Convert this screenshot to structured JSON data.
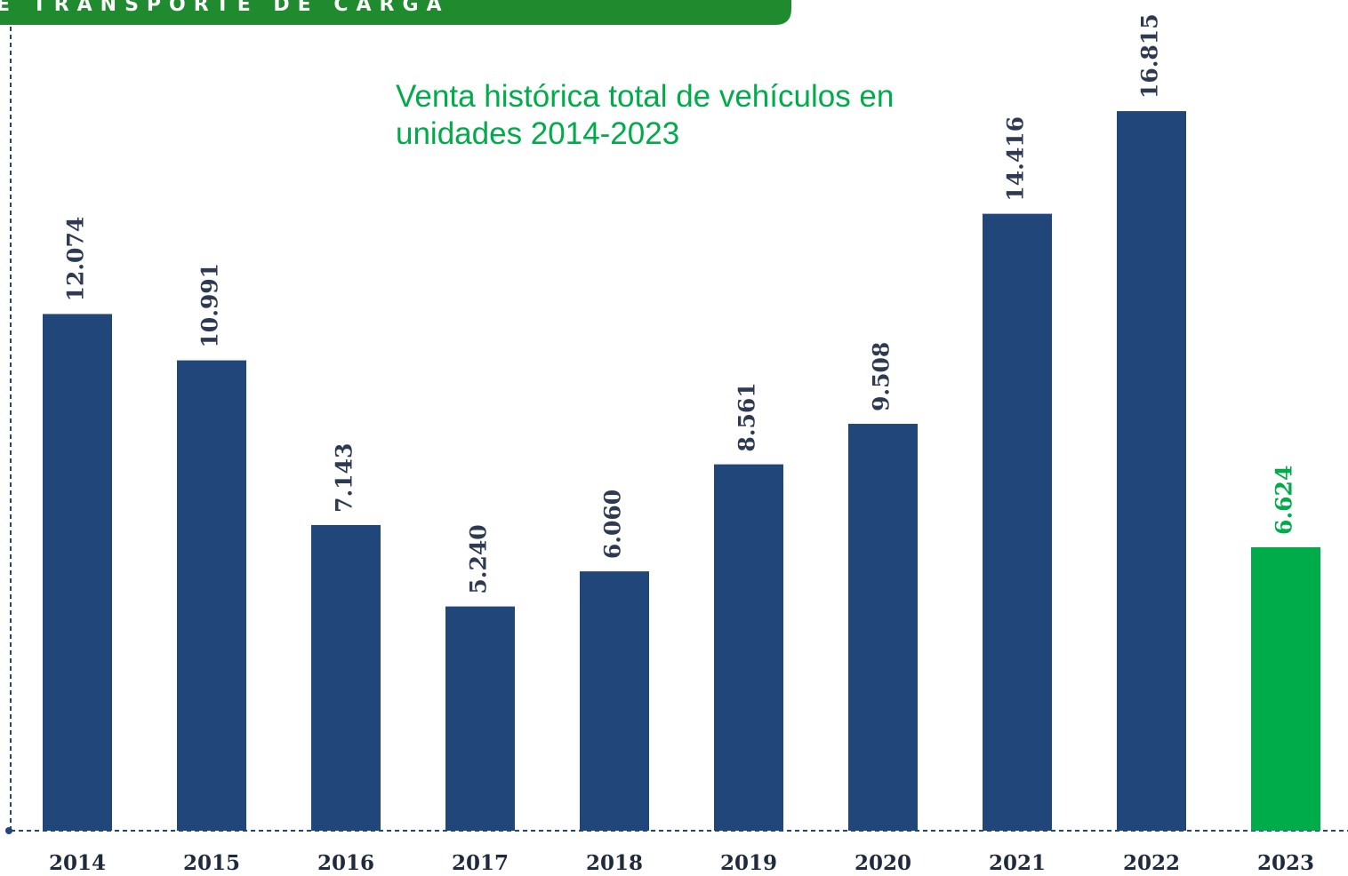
{
  "banner": "E TRANSPORTE DE CARGA",
  "chart_data": {
    "type": "bar",
    "title": [
      "Venta histórica total de vehículos en",
      "unidades 2014-2023"
    ],
    "categories": [
      "2014",
      "2015",
      "2016",
      "2017",
      "2018",
      "2019",
      "2020",
      "2021",
      "2022",
      "2023"
    ],
    "values": [
      12074,
      10991,
      7143,
      5240,
      6060,
      8561,
      9508,
      14416,
      16815,
      6624
    ],
    "value_labels": [
      "12.074",
      "10.991",
      "7.143",
      "5.240",
      "6.060",
      "8.561",
      "9.508",
      "14.416",
      "16.815",
      "6.624"
    ],
    "colors": [
      "#21477a",
      "#21477a",
      "#21477a",
      "#21477a",
      "#21477a",
      "#21477a",
      "#21477a",
      "#21477a",
      "#21477a",
      "#00ac4a"
    ],
    "ylim": [
      0,
      18000
    ]
  }
}
